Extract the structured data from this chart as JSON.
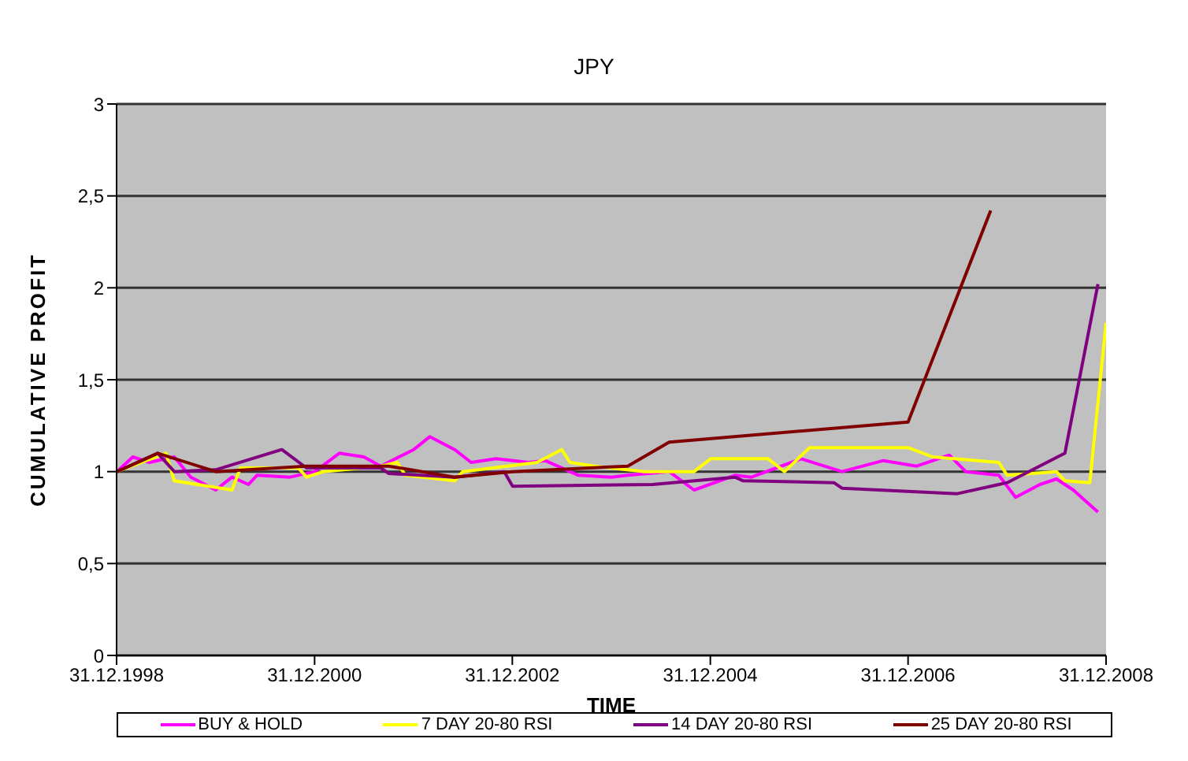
{
  "chart_data": {
    "type": "line",
    "title": "JPY",
    "xlabel": "TIME",
    "ylabel": "CUMULATIVE PROFIT",
    "xlim": [
      "1998-12-31",
      "2008-12-31"
    ],
    "xticks": [
      {
        "value": "1998-12-31",
        "label": "31.12.1998"
      },
      {
        "value": "2000-12-31",
        "label": "31.12.2000"
      },
      {
        "value": "2002-12-31",
        "label": "31.12.2002"
      },
      {
        "value": "2004-12-31",
        "label": "31.12.2004"
      },
      {
        "value": "2006-12-31",
        "label": "31.12.2006"
      },
      {
        "value": "2008-12-31",
        "label": "31.12.2008"
      }
    ],
    "ylim": [
      0,
      3
    ],
    "yticks": [
      0,
      {
        "value": 0.5,
        "label": "0,5"
      },
      1,
      {
        "value": 1.5,
        "label": "1,5"
      },
      2,
      {
        "value": 2.5,
        "label": "2,5"
      },
      3
    ],
    "grid": "y",
    "legend": "bottom",
    "marker": "none",
    "line_style": "solid",
    "series": [
      {
        "name": "BUY & HOLD",
        "color": "#ff00ff",
        "x": [
          "1999-01",
          "1999-03",
          "1999-05",
          "1999-08",
          "1999-10",
          "2000-01",
          "2000-03",
          "2000-05",
          "2000-06",
          "2000-10",
          "2001-01",
          "2001-04",
          "2001-07",
          "2001-09",
          "2002-01",
          "2002-03",
          "2002-06",
          "2002-08",
          "2002-11",
          "2003-03",
          "2003-05",
          "2003-09",
          "2004-01",
          "2004-03",
          "2004-08",
          "2004-11",
          "2005-04",
          "2005-06",
          "2005-12",
          "2006-05",
          "2006-10",
          "2007-02",
          "2007-06",
          "2007-08",
          "2007-12",
          "2008-02",
          "2008-05",
          "2008-07",
          "2008-09",
          "2008-12"
        ],
        "values": [
          1.0,
          1.08,
          1.05,
          1.08,
          0.97,
          0.9,
          0.97,
          0.93,
          0.98,
          0.97,
          1.0,
          1.1,
          1.08,
          1.03,
          1.12,
          1.19,
          1.12,
          1.05,
          1.07,
          1.05,
          1.06,
          0.98,
          0.97,
          0.98,
          1.0,
          0.9,
          0.98,
          0.97,
          1.07,
          1.0,
          1.06,
          1.03,
          1.09,
          1.0,
          0.98,
          0.86,
          0.93,
          0.96,
          0.9,
          0.78
        ]
      },
      {
        "name": "7 DAY 20-80 RSI",
        "color": "#ffff00",
        "x": [
          "1999-01",
          "1999-07",
          "1999-08",
          "2000-03",
          "2000-04",
          "2000-11",
          "2000-12",
          "2001-02",
          "2001-09",
          "2001-11",
          "2001-12",
          "2002-06",
          "2002-07",
          "2003-04",
          "2003-07",
          "2003-08",
          "2003-11",
          "2004-05",
          "2004-11",
          "2005-01",
          "2005-08",
          "2005-10",
          "2006-01",
          "2007-01",
          "2007-04",
          "2007-12",
          "2008-01",
          "2008-07",
          "2008-08",
          "2008-11",
          "2008-12-31"
        ],
        "values": [
          1.0,
          1.1,
          0.95,
          0.9,
          1.02,
          1.02,
          0.97,
          1.0,
          1.03,
          1.05,
          0.98,
          0.95,
          1.0,
          1.05,
          1.12,
          1.05,
          1.03,
          1.0,
          1.0,
          1.07,
          1.07,
          1.0,
          1.13,
          1.13,
          1.08,
          1.05,
          0.98,
          1.0,
          0.95,
          0.94,
          1.81
        ]
      },
      {
        "name": "14 DAY 20-80 RSI",
        "color": "#800080",
        "x": [
          "1999-01",
          "1999-06",
          "1999-08",
          "2000-01",
          "2000-09",
          "2000-12",
          "2001-09",
          "2001-10",
          "2002-06",
          "2002-12",
          "2003-01",
          "2004-06",
          "2005-04",
          "2005-05",
          "2006-04",
          "2006-05",
          "2007-07",
          "2008-01",
          "2008-08",
          "2008-12"
        ],
        "values": [
          1.0,
          1.1,
          1.0,
          1.01,
          1.12,
          1.02,
          1.02,
          0.99,
          0.97,
          1.0,
          0.92,
          0.93,
          0.97,
          0.95,
          0.94,
          0.91,
          0.88,
          0.94,
          1.1,
          2.02
        ]
      },
      {
        "name": "25 DAY 20-80 RSI",
        "color": "#800000",
        "x": [
          "1999-01",
          "1999-06",
          "2000-01",
          "2000-12",
          "2001-10",
          "2002-06",
          "2003-01",
          "2004-03",
          "2004-08",
          "2006-12-31",
          "2007-11"
        ],
        "values": [
          1.0,
          1.1,
          1.0,
          1.03,
          1.03,
          0.97,
          1.0,
          1.03,
          1.16,
          1.27,
          2.42
        ]
      }
    ]
  }
}
